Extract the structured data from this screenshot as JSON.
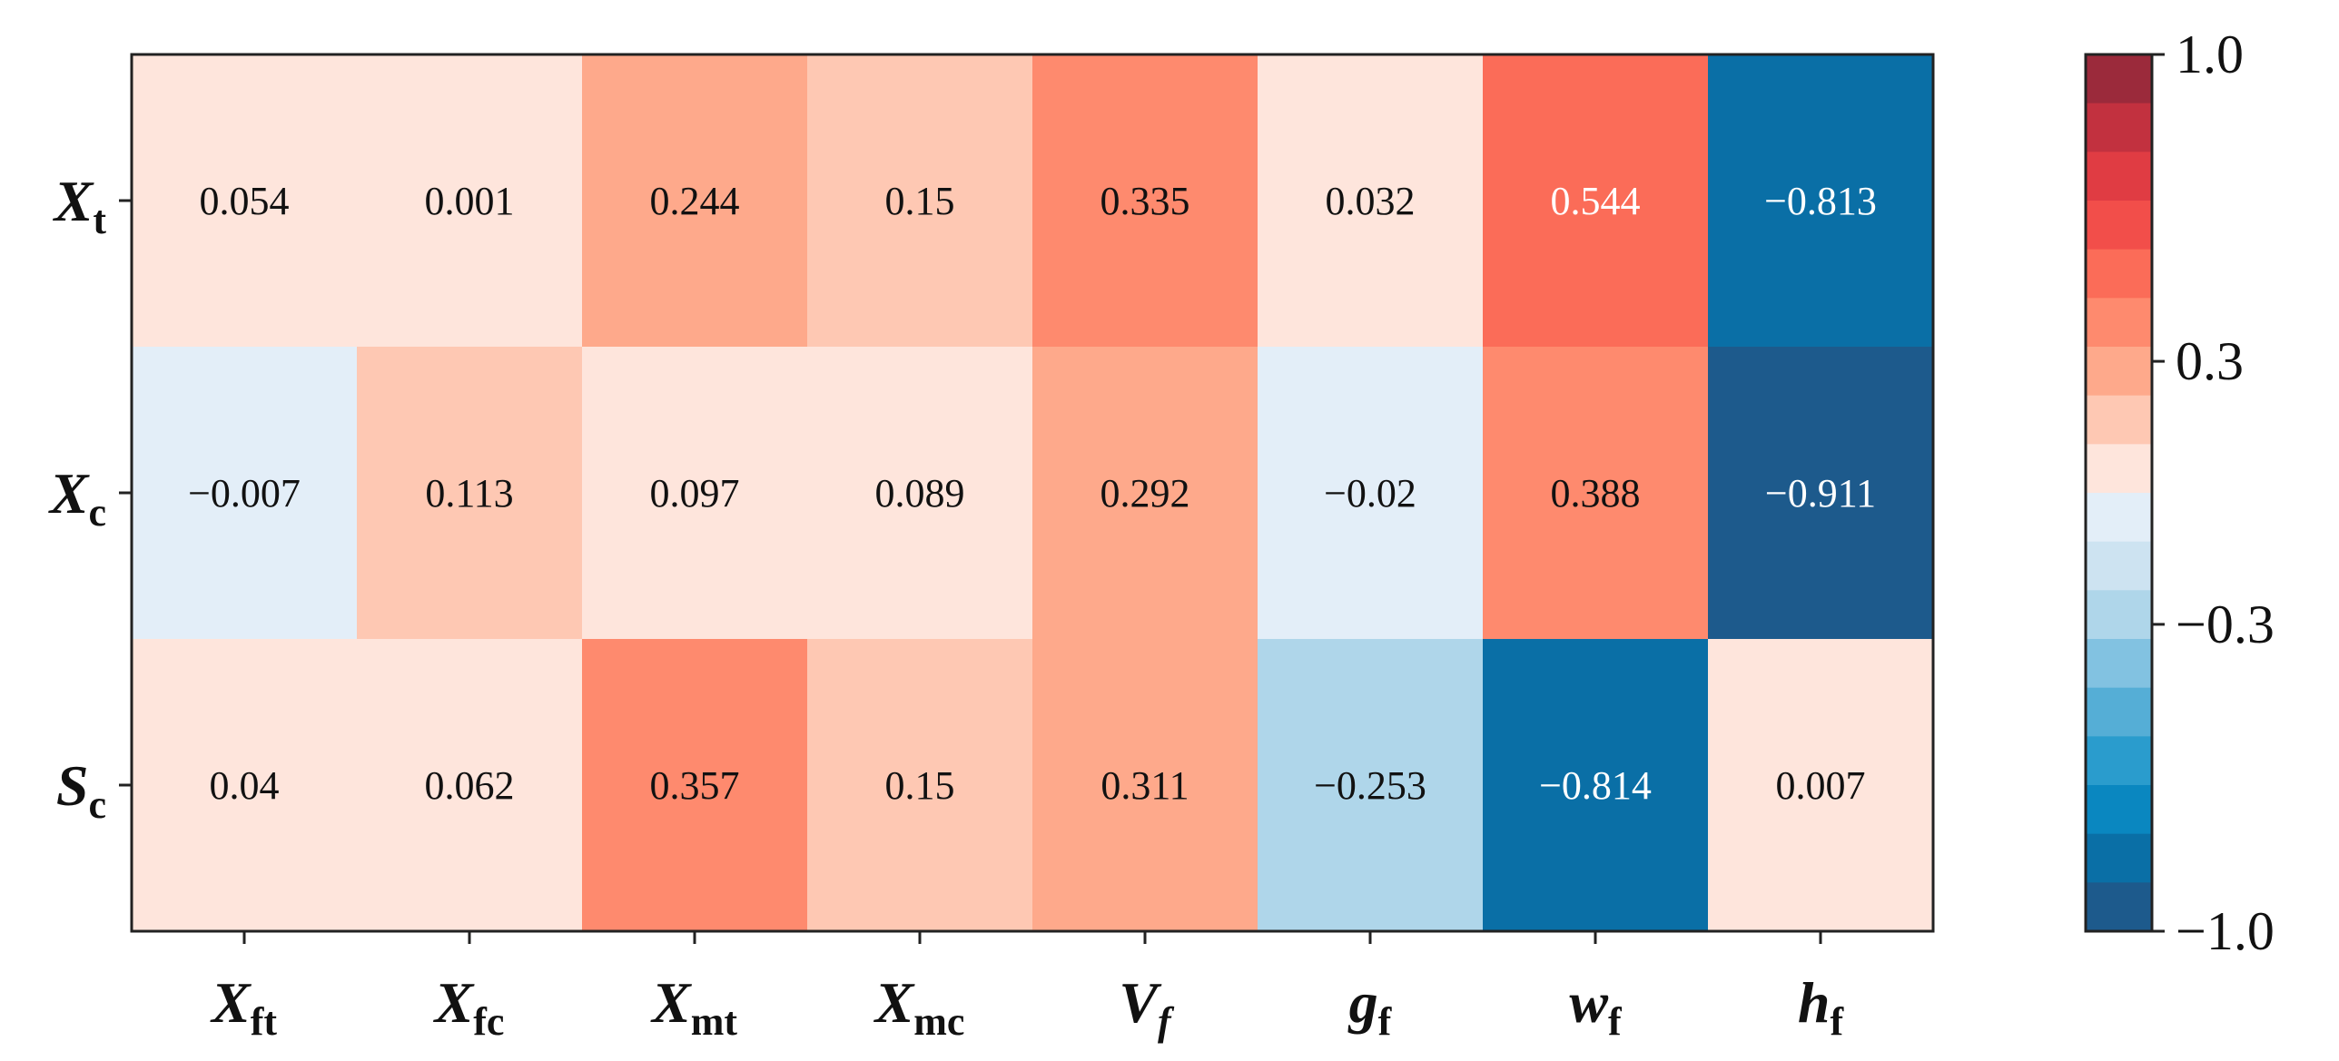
{
  "chart_data": {
    "type": "heatmap",
    "rows": [
      {
        "main": "X",
        "sub": "t"
      },
      {
        "main": "X",
        "sub": "c"
      },
      {
        "main": "S",
        "sub": "c"
      }
    ],
    "columns": [
      {
        "main": "X",
        "sub": "ft"
      },
      {
        "main": "X",
        "sub": "fc"
      },
      {
        "main": "X",
        "sub": "mt"
      },
      {
        "main": "X",
        "sub": "mc"
      },
      {
        "main": "V",
        "sub": "f",
        "sub_italic": true
      },
      {
        "main": "g",
        "sub": "f"
      },
      {
        "main": "w",
        "sub": "f"
      },
      {
        "main": "h",
        "sub": "f"
      }
    ],
    "values": [
      [
        0.054,
        0.001,
        0.244,
        0.15,
        0.335,
        0.032,
        0.544,
        -0.813
      ],
      [
        -0.007,
        0.113,
        0.097,
        0.089,
        0.292,
        -0.02,
        0.388,
        -0.911
      ],
      [
        0.04,
        0.062,
        0.357,
        0.15,
        0.311,
        -0.253,
        -0.814,
        0.007
      ]
    ],
    "cell_labels": [
      [
        "0.054",
        "0.001",
        "0.244",
        "0.15",
        "0.335",
        "0.032",
        "0.544",
        "−0.813"
      ],
      [
        "−0.007",
        "0.113",
        "0.097",
        "0.089",
        "0.292",
        "−0.02",
        "0.388",
        "−0.911"
      ],
      [
        "0.04",
        "0.062",
        "0.357",
        "0.15",
        "0.311",
        "−0.253",
        "−0.814",
        "0.007"
      ]
    ],
    "colorbar": {
      "range": [
        -1.0,
        1.0
      ],
      "ticks": [
        1.0,
        0.3,
        -0.3,
        -1.0
      ],
      "tick_labels": [
        "1.0",
        "0.3",
        "−0.3",
        "−1.0"
      ],
      "bins_top_to_bottom": [
        "#9b2a3b",
        "#c2313f",
        "#e03c43",
        "#f24e4a",
        "#fb6c58",
        "#fe8a6e",
        "#fea98b",
        "#fec8b3",
        "#fee5dc",
        "#e3eef8",
        "#cde3f1",
        "#afd6ea",
        "#82c2e1",
        "#55aed6",
        "#2a9ccd",
        "#0a87c0",
        "#0a6fa6",
        "#1d5a8c"
      ]
    },
    "colors": {
      "text_dark": "#111111",
      "text_light": "#ffffff"
    }
  }
}
